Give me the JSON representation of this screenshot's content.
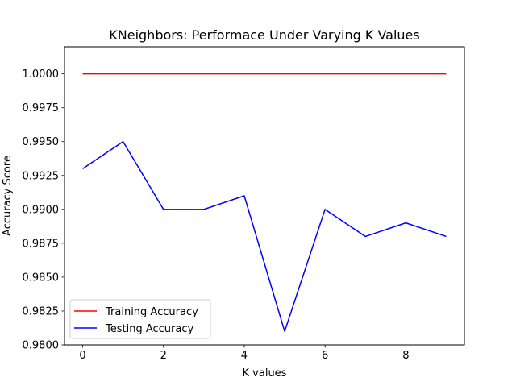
{
  "chart_data": {
    "type": "line",
    "title": "KNeighbors: Performace Under Varying K Values",
    "xlabel": "K values",
    "ylabel": "Accuracy Score",
    "xlim": [
      -0.45,
      9.45
    ],
    "ylim": [
      0.98,
      1.002
    ],
    "x_ticks": [
      0,
      2,
      4,
      6,
      8
    ],
    "y_ticks": [
      0.98,
      0.9825,
      0.985,
      0.9875,
      0.99,
      0.9925,
      0.995,
      0.9975,
      1.0
    ],
    "grid": false,
    "legend_position": "lower-left",
    "x": [
      0,
      1,
      2,
      3,
      4,
      5,
      6,
      7,
      8,
      9
    ],
    "series": [
      {
        "name": "Training Accuracy",
        "color": "#ff0000",
        "values": [
          1.0,
          1.0,
          1.0,
          1.0,
          1.0,
          1.0,
          1.0,
          1.0,
          1.0,
          1.0
        ]
      },
      {
        "name": "Testing Accuracy",
        "color": "#0000ff",
        "values": [
          0.993,
          0.995,
          0.99,
          0.99,
          0.991,
          0.981,
          0.99,
          0.988,
          0.989,
          0.988
        ]
      }
    ]
  }
}
